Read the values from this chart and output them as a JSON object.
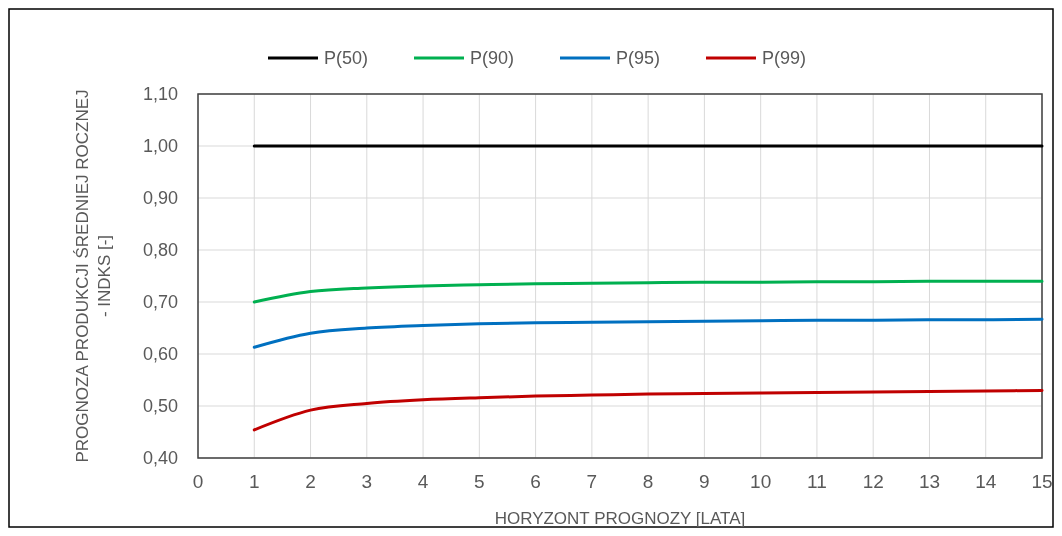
{
  "chart_data": {
    "type": "line",
    "xlabel": "HORYZONT PROGNOZY [LATA]",
    "ylabel": "PROGNOZA PRODUKCJI ŚREDNIEJ ROCZNEJ - INDKS [-]",
    "x": [
      1,
      2,
      3,
      4,
      5,
      6,
      7,
      8,
      9,
      10,
      11,
      12,
      13,
      14,
      15
    ],
    "series": [
      {
        "name": "P(50)",
        "color": "#000000",
        "values": [
          1,
          1,
          1,
          1,
          1,
          1,
          1,
          1,
          1,
          1,
          1,
          1,
          1,
          1,
          1
        ]
      },
      {
        "name": "P(90)",
        "color": "#00b050",
        "values": [
          0.7,
          0.72,
          0.727,
          0.731,
          0.733,
          0.735,
          0.736,
          0.737,
          0.738,
          0.738,
          0.739,
          0.739,
          0.74,
          0.74,
          0.74
        ]
      },
      {
        "name": "P(95)",
        "color": "#0070c0",
        "values": [
          0.613,
          0.64,
          0.65,
          0.655,
          0.658,
          0.66,
          0.661,
          0.662,
          0.663,
          0.664,
          0.665,
          0.665,
          0.666,
          0.666,
          0.667
        ]
      },
      {
        "name": "P(99)",
        "color": "#c00000",
        "values": [
          0.454,
          0.492,
          0.505,
          0.512,
          0.516,
          0.519,
          0.521,
          0.523,
          0.524,
          0.525,
          0.526,
          0.527,
          0.528,
          0.529,
          0.53
        ]
      }
    ],
    "xlim": [
      0,
      15
    ],
    "xticks": [
      0,
      1,
      2,
      3,
      4,
      5,
      6,
      7,
      8,
      9,
      10,
      11,
      12,
      13,
      14,
      15
    ],
    "ylim": [
      0.4,
      1.1
    ],
    "yticks": [
      {
        "value": 0.4,
        "label": "0,40"
      },
      {
        "value": 0.5,
        "label": "0,50"
      },
      {
        "value": 0.6,
        "label": "0,60"
      },
      {
        "value": 0.7,
        "label": "0,70"
      },
      {
        "value": 0.8,
        "label": "0,80"
      },
      {
        "value": 0.9,
        "label": "0,90"
      },
      {
        "value": 1.0,
        "label": "1,00"
      },
      {
        "value": 1.1,
        "label": "1,10"
      }
    ],
    "grid": true,
    "legend": "top",
    "marker": "none",
    "line_style": "solid"
  }
}
